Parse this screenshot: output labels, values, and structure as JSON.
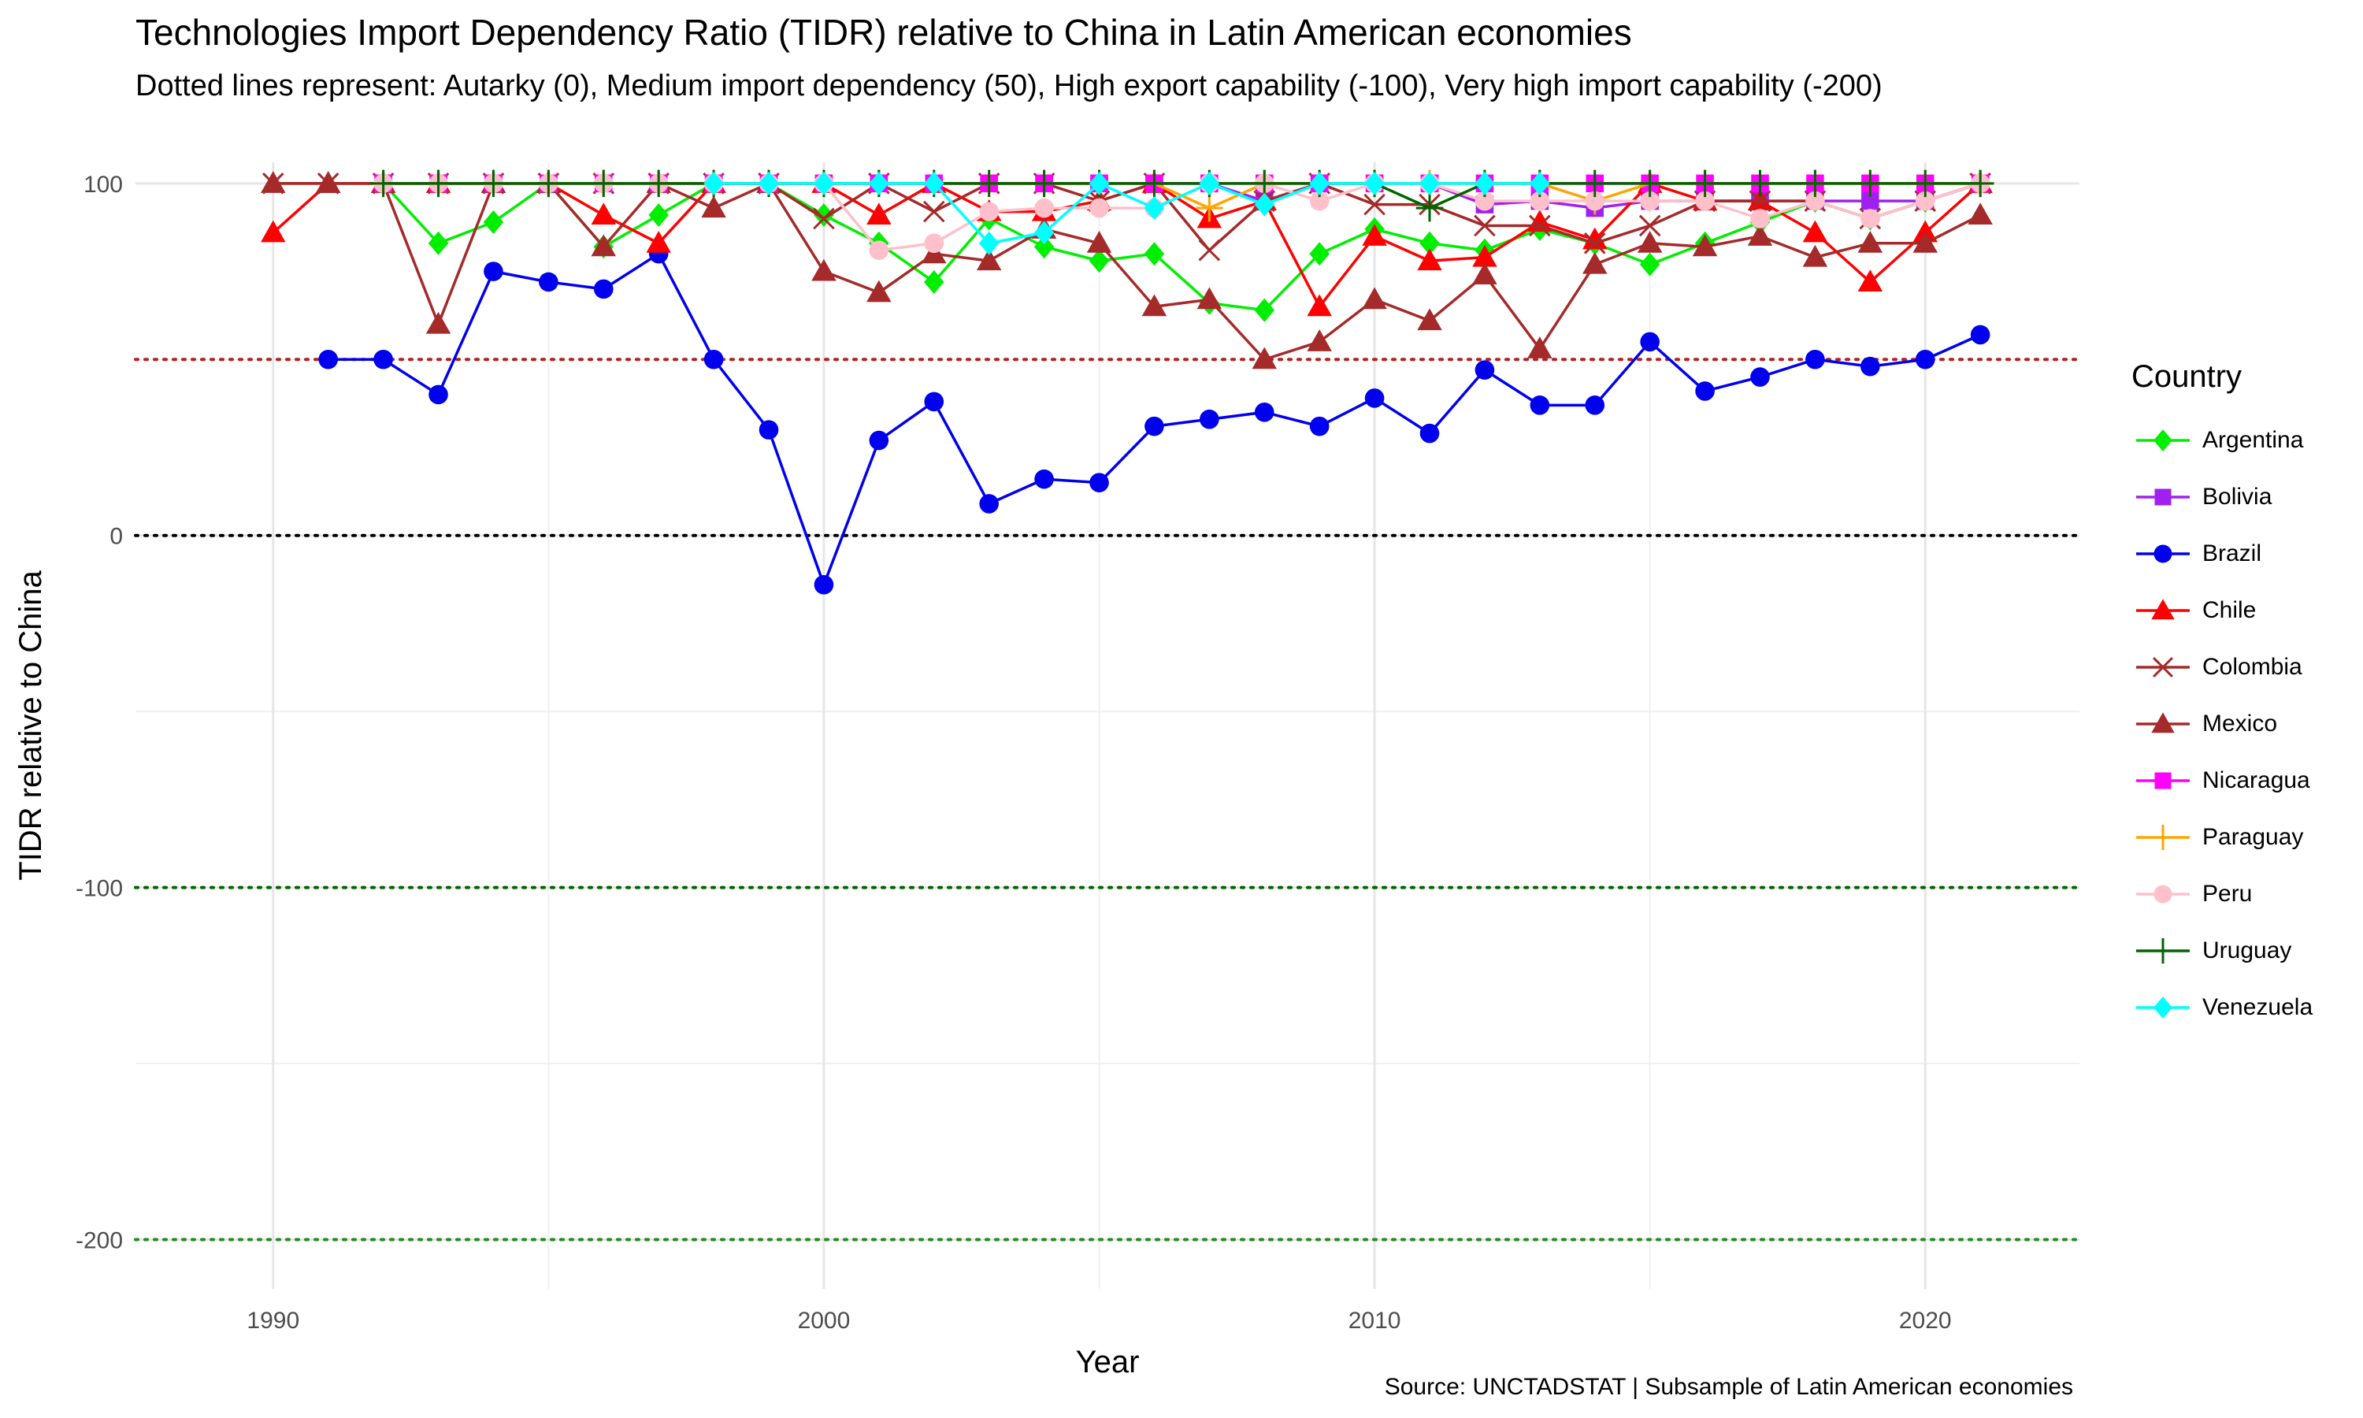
{
  "chart_data": {
    "type": "line",
    "title": "Technologies Import Dependency Ratio (TIDR) relative to China in Latin American economies",
    "subtitle": "Dotted lines represent: Autarky (0), Medium import dependency (50), High export capability (-100), Very high import capability (-200)",
    "caption": "Source: UNCTADSTAT | Subsample of Latin American economies",
    "xlabel": "Year",
    "ylabel": "TIDR relative to China",
    "xlim": [
      1987.5,
      2022.8
    ],
    "ylim": [
      -214,
      106
    ],
    "x_ticks": [
      1990,
      2000,
      2010,
      2020
    ],
    "y_ticks": [
      -200,
      -100,
      0,
      100
    ],
    "x_tick_labels": [
      "1990",
      "2000",
      "2010",
      "2020"
    ],
    "y_tick_labels": [
      "-200",
      "-100",
      "0",
      "100"
    ],
    "grid": true,
    "legend_title": "Country",
    "legend_position": "right",
    "reference_lines": [
      {
        "y": 50,
        "color": "#b22222"
      },
      {
        "y": 0,
        "color": "#000000"
      },
      {
        "y": -100,
        "color": "#006400"
      },
      {
        "y": -200,
        "color": "#228b22"
      }
    ],
    "series": [
      {
        "name": "Argentina",
        "color": "#00ee00",
        "marker": "diamond",
        "x": [
          1992,
          1993,
          1994,
          1995,
          1996,
          1997,
          1998,
          1999,
          2000,
          2001,
          2002,
          2003,
          2004,
          2005,
          2006,
          2007,
          2008,
          2009,
          2010,
          2011,
          2012,
          2013,
          2014,
          2015,
          2016,
          2017,
          2018,
          2019,
          2020,
          2021
        ],
        "y": [
          100,
          83,
          89,
          100,
          82,
          91,
          100,
          100,
          91,
          83,
          72,
          90,
          82,
          78,
          80,
          66,
          64,
          80,
          87,
          83,
          81,
          87,
          83,
          77,
          83,
          89,
          95,
          90,
          95,
          100
        ]
      },
      {
        "name": "Bolivia",
        "color": "#a020f0",
        "marker": "square",
        "x": [
          1992,
          1993,
          1994,
          1995,
          1996,
          1997,
          1998,
          1999,
          2000,
          2001,
          2002,
          2003,
          2004,
          2005,
          2006,
          2007,
          2008,
          2009,
          2010,
          2011,
          2012,
          2013,
          2014,
          2015,
          2016,
          2017,
          2018,
          2019,
          2020,
          2021
        ],
        "y": [
          100,
          100,
          100,
          100,
          100,
          100,
          100,
          100,
          100,
          100,
          100,
          100,
          100,
          100,
          100,
          100,
          95,
          100,
          100,
          100,
          94,
          95,
          93,
          95,
          95,
          95,
          95,
          95,
          95,
          100
        ]
      },
      {
        "name": "Brazil",
        "color": "#0000ee",
        "marker": "circle",
        "x": [
          1991,
          1992,
          1993,
          1994,
          1995,
          1996,
          1997,
          1998,
          1999,
          2000,
          2001,
          2002,
          2003,
          2004,
          2005,
          2006,
          2007,
          2008,
          2009,
          2010,
          2011,
          2012,
          2013,
          2014,
          2015,
          2016,
          2017,
          2018,
          2019,
          2020,
          2021
        ],
        "y": [
          50,
          50,
          40,
          75,
          72,
          70,
          80,
          50,
          30,
          -14,
          27,
          38,
          9,
          16,
          15,
          31,
          33,
          35,
          31,
          39,
          29,
          47,
          37,
          37,
          55,
          41,
          45,
          50,
          48,
          50,
          57
        ]
      },
      {
        "name": "Chile",
        "color": "#ff0000",
        "marker": "triangle",
        "x": [
          1990,
          1991,
          1992,
          1993,
          1994,
          1995,
          1996,
          1997,
          1998,
          1999,
          2000,
          2001,
          2002,
          2003,
          2004,
          2005,
          2006,
          2007,
          2008,
          2009,
          2010,
          2011,
          2012,
          2013,
          2014,
          2015,
          2016,
          2017,
          2018,
          2019,
          2020,
          2021
        ],
        "y": [
          86,
          100,
          100,
          100,
          100,
          100,
          91,
          83,
          100,
          100,
          100,
          91,
          100,
          92,
          92,
          95,
          100,
          90,
          95,
          65,
          85,
          78,
          79,
          89,
          84,
          100,
          95,
          95,
          86,
          72,
          86,
          100
        ]
      },
      {
        "name": "Colombia",
        "color": "#a52a2a",
        "marker": "cross",
        "x": [
          1990,
          1991,
          1992,
          1993,
          1994,
          1995,
          1996,
          1997,
          1998,
          1999,
          2000,
          2001,
          2002,
          2003,
          2004,
          2005,
          2006,
          2007,
          2008,
          2009,
          2010,
          2011,
          2012,
          2013,
          2014,
          2015,
          2016,
          2017,
          2018,
          2019,
          2020,
          2021
        ],
        "y": [
          100,
          100,
          100,
          100,
          100,
          100,
          100,
          100,
          100,
          100,
          90,
          100,
          92,
          100,
          100,
          95,
          100,
          81,
          95,
          100,
          94,
          94,
          88,
          88,
          83,
          88,
          95,
          95,
          95,
          90,
          95,
          100
        ]
      },
      {
        "name": "Mexico",
        "color": "#a52a2a",
        "marker": "triangle",
        "x": [
          1990,
          1991,
          1992,
          1993,
          1994,
          1995,
          1996,
          1997,
          1998,
          1999,
          2000,
          2001,
          2002,
          2003,
          2004,
          2005,
          2006,
          2007,
          2008,
          2009,
          2010,
          2011,
          2012,
          2013,
          2014,
          2015,
          2016,
          2017,
          2018,
          2019,
          2020,
          2021
        ],
        "y": [
          100,
          100,
          100,
          60,
          100,
          100,
          82,
          100,
          93,
          100,
          75,
          69,
          80,
          78,
          87,
          83,
          65,
          67,
          50,
          55,
          67,
          61,
          74,
          53,
          77,
          83,
          82,
          85,
          79,
          83,
          83,
          91
        ]
      },
      {
        "name": "Nicaragua",
        "color": "#ff00ff",
        "marker": "square",
        "x": [
          1992,
          1993,
          1994,
          1995,
          1996,
          1997,
          1998,
          1999,
          2000,
          2001,
          2002,
          2003,
          2004,
          2005,
          2006,
          2007,
          2008,
          2009,
          2010,
          2011,
          2012,
          2013,
          2014,
          2015,
          2016,
          2017,
          2018,
          2019,
          2020,
          2021
        ],
        "y": [
          100,
          100,
          100,
          100,
          100,
          100,
          100,
          100,
          100,
          100,
          100,
          100,
          100,
          100,
          100,
          100,
          100,
          100,
          100,
          100,
          100,
          100,
          100,
          100,
          100,
          100,
          100,
          100,
          100,
          100
        ]
      },
      {
        "name": "Paraguay",
        "color": "#ffa500",
        "marker": "plus",
        "x": [
          1992,
          1993,
          1994,
          1995,
          1996,
          1997,
          1998,
          1999,
          2000,
          2001,
          2002,
          2003,
          2004,
          2005,
          2006,
          2007,
          2008,
          2009,
          2010,
          2011,
          2012,
          2013,
          2014,
          2015,
          2016,
          2017,
          2018,
          2019,
          2020,
          2021
        ],
        "y": [
          100,
          100,
          100,
          100,
          100,
          100,
          100,
          100,
          100,
          100,
          100,
          100,
          100,
          100,
          100,
          93,
          100,
          100,
          100,
          100,
          100,
          100,
          95,
          100,
          100,
          100,
          100,
          100,
          100,
          100
        ]
      },
      {
        "name": "Peru",
        "color": "#ffc0cb",
        "marker": "circle",
        "x": [
          1992,
          1993,
          1994,
          1995,
          1996,
          1997,
          1998,
          1999,
          2000,
          2001,
          2002,
          2003,
          2004,
          2005,
          2006,
          2007,
          2008,
          2009,
          2010,
          2011,
          2012,
          2013,
          2014,
          2015,
          2016,
          2017,
          2018,
          2019,
          2020,
          2021
        ],
        "y": [
          100,
          100,
          100,
          100,
          100,
          100,
          100,
          100,
          100,
          81,
          83,
          92,
          93,
          93,
          93,
          100,
          100,
          95,
          100,
          100,
          95,
          95,
          95,
          95,
          95,
          90,
          95,
          90,
          95,
          100
        ]
      },
      {
        "name": "Uruguay",
        "color": "#006400",
        "marker": "plus",
        "x": [
          1992,
          1993,
          1994,
          1995,
          1996,
          1997,
          1998,
          1999,
          2000,
          2001,
          2002,
          2003,
          2004,
          2005,
          2006,
          2007,
          2008,
          2009,
          2010,
          2011,
          2012,
          2013,
          2014,
          2015,
          2016,
          2017,
          2018,
          2019,
          2020,
          2021
        ],
        "y": [
          100,
          100,
          100,
          100,
          100,
          100,
          100,
          100,
          100,
          100,
          100,
          100,
          100,
          100,
          100,
          100,
          100,
          100,
          100,
          93,
          100,
          100,
          100,
          100,
          100,
          100,
          100,
          100,
          100,
          100
        ]
      },
      {
        "name": "Venezuela",
        "color": "#00ffff",
        "marker": "diamond",
        "x": [
          1998,
          1999,
          2000,
          2001,
          2002,
          2003,
          2004,
          2005,
          2006,
          2007,
          2008,
          2009,
          2010,
          2011,
          2012,
          2013
        ],
        "y": [
          100,
          100,
          100,
          100,
          100,
          83,
          86,
          100,
          93,
          100,
          94,
          100,
          100,
          100,
          100,
          100
        ]
      }
    ]
  }
}
